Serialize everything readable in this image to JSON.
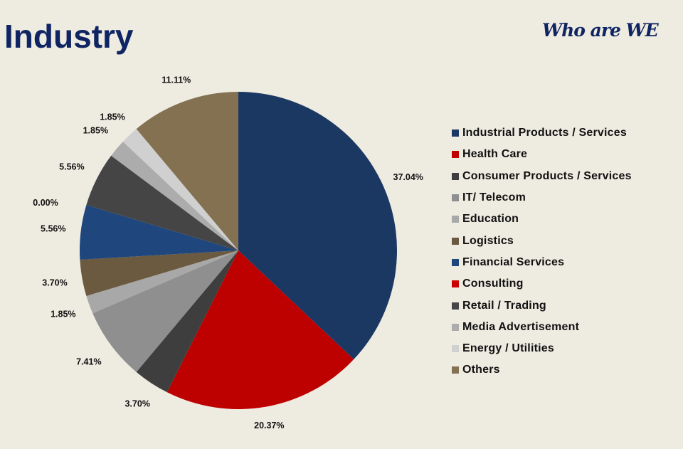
{
  "slide": {
    "title": "Industry",
    "tagline": "Who are WE"
  },
  "chart_data": {
    "type": "pie",
    "start_angle_deg": 0,
    "direction": "clockwise",
    "legend_position": "right",
    "slices": [
      {
        "name": "Industrial Products / Services",
        "value": 37.04,
        "label": "37.04%",
        "color": "#1b3863"
      },
      {
        "name": "Health Care",
        "value": 20.37,
        "label": "20.37%",
        "color": "#bd0000"
      },
      {
        "name": "Consumer Products / Services",
        "value": 3.7,
        "label": "3.70%",
        "color": "#3e3e3e"
      },
      {
        "name": "IT/ Telecom",
        "value": 7.41,
        "label": "7.41%",
        "color": "#8f8f8f"
      },
      {
        "name": "Education",
        "value": 1.85,
        "label": "1.85%",
        "color": "#a8a8a8"
      },
      {
        "name": "Logistics",
        "value": 3.7,
        "label": "3.70%",
        "color": "#6b5a40"
      },
      {
        "name": "Financial Services",
        "value": 5.56,
        "label": "5.56%",
        "color": "#1f477d"
      },
      {
        "name": "Consulting",
        "value": 0.0,
        "label": "0.00%",
        "color": "#cc0000"
      },
      {
        "name": "Retail / Trading",
        "value": 5.56,
        "label": "5.56%",
        "color": "#454545"
      },
      {
        "name": "Media Advertisement",
        "value": 1.85,
        "label": "1.85%",
        "color": "#acacac"
      },
      {
        "name": "Energy / Utilities",
        "value": 1.85,
        "label": "1.85%",
        "color": "#d0d0d0"
      },
      {
        "name": "Others",
        "value": 11.11,
        "label": "11.11%",
        "color": "#847152"
      }
    ]
  }
}
